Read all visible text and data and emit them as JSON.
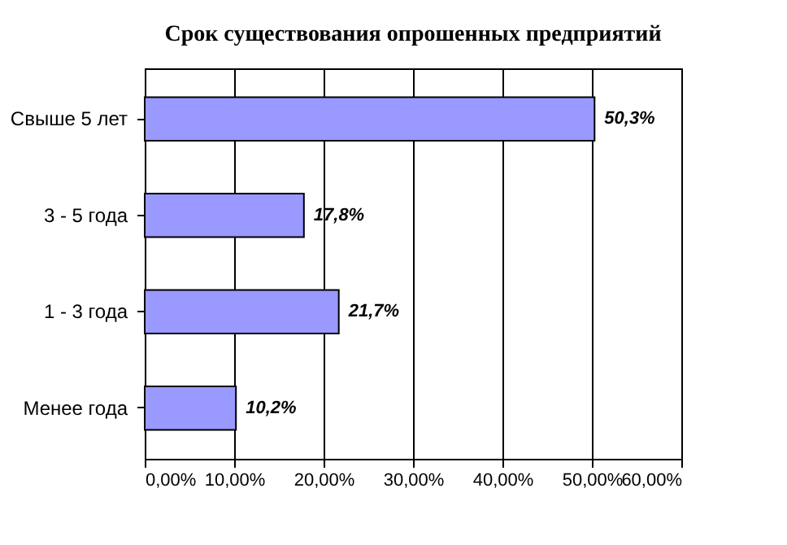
{
  "chart_data": {
    "type": "bar",
    "orientation": "horizontal",
    "title": "Срок существования опрошенных предприятий",
    "categories": [
      "Свыше 5 лет",
      "3 - 5 года",
      "1 - 3 года",
      "Менее года"
    ],
    "values": [
      50.3,
      17.8,
      21.7,
      10.2
    ],
    "value_labels": [
      "50,3%",
      "17,8%",
      "21,7%",
      "10,2%"
    ],
    "color": "#9999ff",
    "xlim": [
      0,
      60
    ],
    "xticks": [
      {
        "value": 0,
        "label": "0,00%"
      },
      {
        "value": 10,
        "label": "10,00%"
      },
      {
        "value": 20,
        "label": "20,00%"
      },
      {
        "value": 30,
        "label": "30,00%"
      },
      {
        "value": 40,
        "label": "40,00%"
      },
      {
        "value": 50,
        "label": "50,00%"
      },
      {
        "value": 60,
        "label": "60,00%"
      }
    ],
    "grid": "x"
  }
}
